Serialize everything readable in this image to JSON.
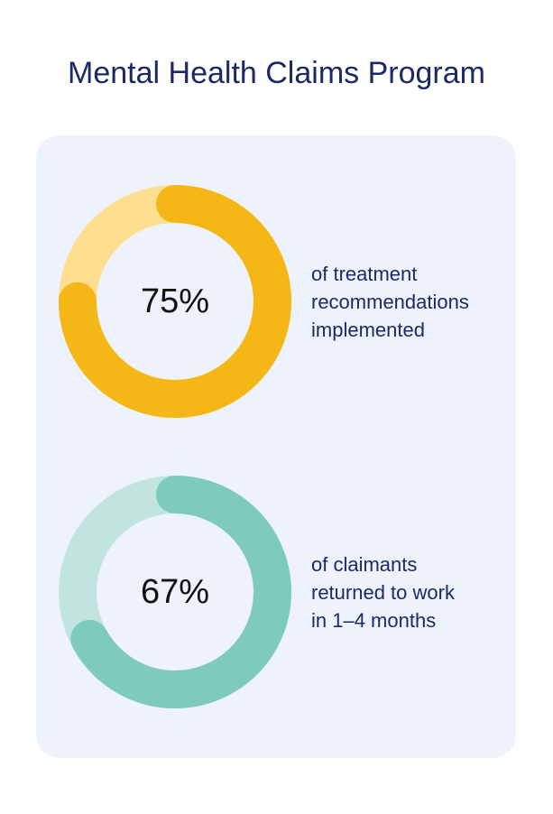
{
  "title": "Mental Health Claims Program",
  "chart_data": [
    {
      "type": "pie",
      "style": "donut",
      "value": 75,
      "label": "75%",
      "caption": "of treatment\nrecommendations\nimplemented",
      "color": "#f4b715",
      "track_color": "#fddf8f"
    },
    {
      "type": "pie",
      "style": "donut",
      "value": 67,
      "label": "67%",
      "caption": "of claimants\nreturned to work\nin 1–4 months",
      "color": "#7ecbbd",
      "track_color": "#c1e4de"
    }
  ]
}
